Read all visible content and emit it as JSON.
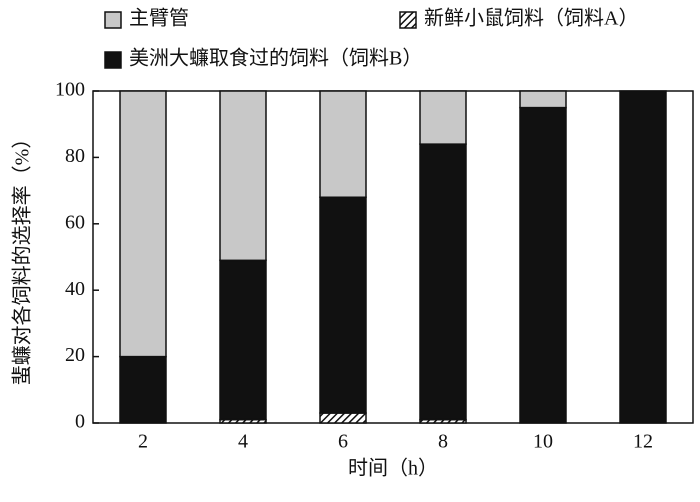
{
  "chart_data": {
    "type": "bar",
    "stacked": true,
    "x_label": "时间（h）",
    "y_label": "蜚蠊对各饲料的选择率（%）",
    "categories": [
      "2",
      "4",
      "6",
      "8",
      "10",
      "12"
    ],
    "series": [
      {
        "name": "主臂管",
        "color": "#c8c8c8",
        "values": [
          80,
          51,
          32,
          16,
          5,
          0
        ]
      },
      {
        "name": "新鲜小鼠饲料（饲料A）",
        "color": "url(#hatch)",
        "values": [
          0,
          1,
          3,
          1,
          0,
          0
        ]
      },
      {
        "name": "美洲大蠊取食过的饲料（饲料B）",
        "color": "#111111",
        "values": [
          20,
          48,
          65,
          83,
          95,
          100
        ]
      }
    ],
    "ylim": [
      0,
      100
    ],
    "yticks": [
      0,
      20,
      40,
      60,
      80,
      100
    ]
  }
}
